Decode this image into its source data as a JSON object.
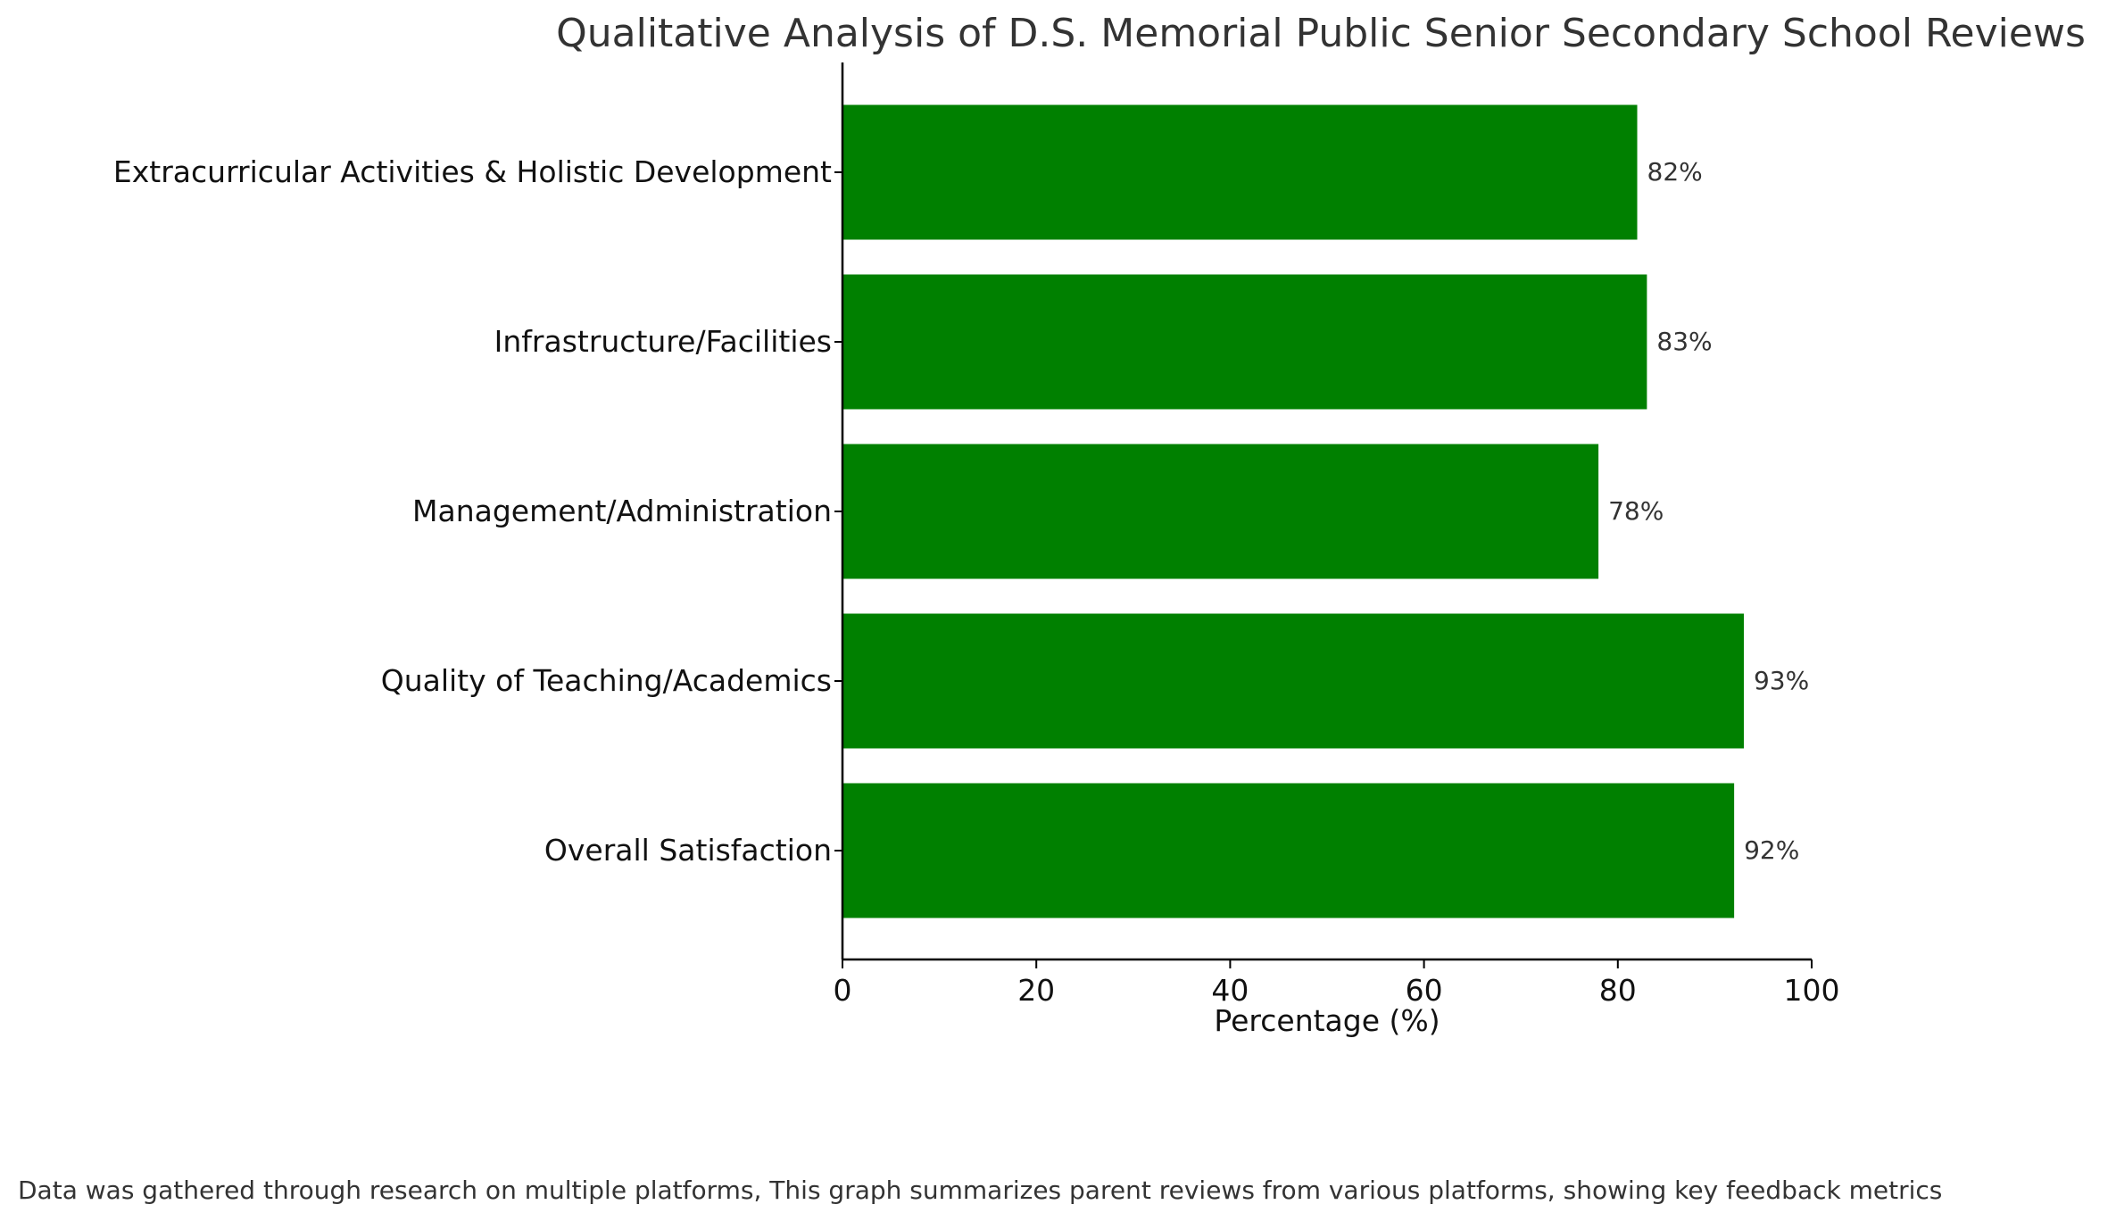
{
  "chart_data": {
    "type": "bar",
    "orientation": "horizontal",
    "title": "Qualitative Analysis of D.S. Memorial Public Senior Secondary School Reviews",
    "xlabel": "Percentage (%)",
    "ylabel": "",
    "xlim": [
      0,
      100
    ],
    "xticks": [
      0,
      20,
      40,
      60,
      80,
      100
    ],
    "categories": [
      "Overall Satisfaction",
      "Quality of Teaching/Academics",
      "Management/Administration",
      "Infrastructure/Facilities",
      "Extracurricular Activities & Holistic Development"
    ],
    "values": [
      92,
      93,
      78,
      83,
      82
    ],
    "data_labels": [
      "92%",
      "93%",
      "78%",
      "83%",
      "82%"
    ],
    "bar_color": "#008000",
    "grid": false,
    "legend": "none"
  },
  "footnote": "Data was gathered through research on multiple platforms, This graph summarizes parent reviews from various platforms, showing key feedback metrics"
}
